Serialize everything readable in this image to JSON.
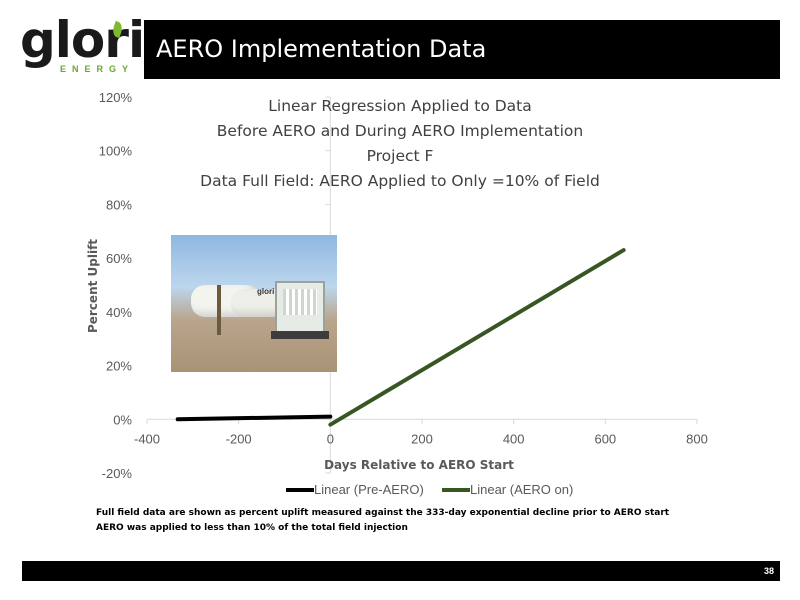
{
  "brand": {
    "name": "glori",
    "subtitle": "ENERGY"
  },
  "slide": {
    "title": "AERO Implementation Data",
    "page_number": "38"
  },
  "colors": {
    "pre_aero": "#000000",
    "aero_on": "#375623",
    "title_bar": "#000000",
    "brand_green": "#6aa72c"
  },
  "chart_data": {
    "type": "line",
    "title_lines": [
      "Linear Regression Applied to Data",
      "Before AERO and During AERO Implementation",
      "Project F",
      "Data Full Field: AERO Applied to Only =10% of Field"
    ],
    "xlabel": "Days Relative to AERO Start",
    "ylabel": "Percent Uplift",
    "xlim": [
      -400,
      800
    ],
    "ylim": [
      -20,
      120
    ],
    "x_ticks": [
      "-400",
      "-200",
      "0",
      "200",
      "400",
      "600",
      "800"
    ],
    "y_ticks": [
      "-20%",
      "0%",
      "20%",
      "40%",
      "60%",
      "80%",
      "100%",
      "120%"
    ],
    "series": [
      {
        "name": "Linear (Pre-AERO)",
        "color": "#000000",
        "x": [
          -333,
          0
        ],
        "y": [
          0,
          1
        ]
      },
      {
        "name": "Linear (AERO on)",
        "color": "#375623",
        "x": [
          0,
          640
        ],
        "y": [
          -2,
          63
        ]
      }
    ],
    "legend": "bottom",
    "grid": false
  },
  "photo": {
    "label": "glori"
  },
  "footnotes": [
    "Full field data are shown as percent uplift measured against the 333-day exponential decline prior to AERO start",
    "AERO was applied to less than 10% of the total field injection"
  ]
}
